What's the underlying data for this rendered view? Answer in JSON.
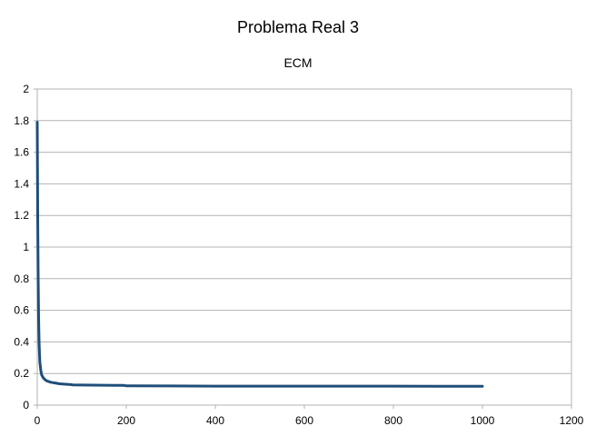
{
  "chart_data": {
    "type": "line",
    "title": "Problema Real 3",
    "subtitle": "ECM",
    "xlabel": "",
    "ylabel": "",
    "xlim": [
      0,
      1200
    ],
    "ylim": [
      0,
      2
    ],
    "x_ticks": [
      "0",
      "200",
      "400",
      "600",
      "800",
      "1000",
      "1200"
    ],
    "y_ticks": [
      "0",
      "0.2",
      "0.4",
      "0.6",
      "0.8",
      "1",
      "1.2",
      "1.4",
      "1.6",
      "1.8",
      "2"
    ],
    "grid": true,
    "legend": "none",
    "series": [
      {
        "color": "#1f4e79",
        "x": [
          0,
          1,
          2,
          3,
          4,
          5,
          6,
          8,
          10,
          14,
          20,
          30,
          40,
          50,
          60,
          75,
          80,
          100,
          150,
          195,
          200,
          300,
          400,
          500,
          600,
          700,
          800,
          900,
          1000
        ],
        "y": [
          1.79,
          1.2,
          0.8,
          0.55,
          0.4,
          0.32,
          0.27,
          0.22,
          0.19,
          0.17,
          0.155,
          0.145,
          0.14,
          0.135,
          0.133,
          0.13,
          0.128,
          0.127,
          0.126,
          0.125,
          0.122,
          0.121,
          0.12,
          0.12,
          0.12,
          0.12,
          0.12,
          0.119,
          0.119
        ]
      }
    ]
  }
}
